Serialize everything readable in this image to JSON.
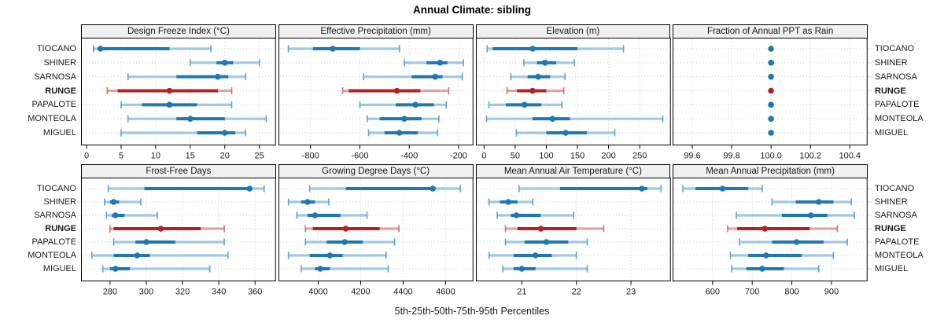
{
  "title": "Annual Climate: sibling",
  "caption": "5th-25th-50th-75th-95th Percentiles",
  "colors": {
    "series_blue": "#1f77b4",
    "series_blue_light": "#9ecae1",
    "series_blue_cap": "#5ba3d0",
    "highlight_red": "#b22222",
    "highlight_red_light": "#e4a3a3",
    "highlight_red_cap": "#cf7171",
    "strip_bg": "#f0f0f0",
    "panel_bg": "#ffffff",
    "panel_border": "#000000",
    "grid_color": "#c9c9c9",
    "edge_tick_color": "#999999",
    "text": "#1a1a1a"
  },
  "chart_data": {
    "type": "dotplot",
    "title": "Annual Climate: sibling",
    "xlabel": "5th-25th-50th-75th-95th Percentiles",
    "layout": "2 rows x 4 cols",
    "grid": "dotted",
    "legend_position": "none",
    "percentiles": [
      5,
      25,
      50,
      75,
      95
    ],
    "categories": [
      "TIOCANO",
      "SHINER",
      "SARNOSA",
      "RUNGE",
      "PAPALOTE",
      "MONTEOLA",
      "MIGUEL"
    ],
    "highlight_category": "RUNGE",
    "panels": [
      {
        "title": "Design Freeze Index (°C)",
        "xlim": [
          -0.8,
          27.4
        ],
        "ticks": [
          0,
          5,
          10,
          15,
          20,
          25
        ],
        "tick_labels": [
          "0",
          "5",
          "10",
          "15",
          "20",
          "25"
        ],
        "values": [
          [
            1,
            1.8,
            2,
            12,
            18
          ],
          [
            15,
            18.8,
            20,
            21.2,
            25
          ],
          [
            6,
            13,
            19,
            20.5,
            23
          ],
          [
            3,
            4.5,
            12,
            19,
            21
          ],
          [
            5,
            8,
            12,
            16,
            21
          ],
          [
            6,
            13,
            15,
            20,
            26
          ],
          [
            5,
            16,
            20,
            21.5,
            23
          ]
        ]
      },
      {
        "title": "Effective Precipitation (mm)",
        "xlim": [
          -930,
          -140
        ],
        "ticks": [
          -800,
          -600,
          -400,
          -200
        ],
        "tick_labels": [
          "-800",
          "-600",
          "-400",
          "-200"
        ],
        "values": [
          [
            -890,
            -790,
            -710,
            -600,
            -440
          ],
          [
            -420,
            -330,
            -275,
            -245,
            -180
          ],
          [
            -585,
            -390,
            -295,
            -265,
            -185
          ],
          [
            -670,
            -645,
            -450,
            -355,
            -240
          ],
          [
            -600,
            -455,
            -375,
            -300,
            -250
          ],
          [
            -570,
            -520,
            -420,
            -350,
            -280
          ],
          [
            -565,
            -500,
            -440,
            -365,
            -285
          ]
        ]
      },
      {
        "title": "Elevation (m)",
        "xlim": [
          -13,
          300
        ],
        "ticks": [
          0,
          50,
          100,
          150,
          200,
          250
        ],
        "tick_labels": [
          "0",
          "50",
          "100",
          "150",
          "200",
          "250"
        ],
        "values": [
          [
            5,
            14,
            78,
            150,
            224
          ],
          [
            64,
            85,
            98,
            116,
            145
          ],
          [
            43,
            70,
            87,
            106,
            130
          ],
          [
            37,
            53,
            78,
            100,
            128
          ],
          [
            8,
            35,
            65,
            92,
            125
          ],
          [
            4,
            78,
            110,
            138,
            287
          ],
          [
            52,
            100,
            131,
            165,
            210
          ]
        ]
      },
      {
        "title": "Fraction of Annual PPT as Rain",
        "xlim": [
          99.5,
          100.49
        ],
        "ticks": [
          99.6,
          99.8,
          100.0,
          100.2,
          100.4
        ],
        "tick_labels": [
          "99.6",
          "99.8",
          "100.0",
          "100.2",
          "100.4"
        ],
        "values": [
          [
            100,
            100,
            100,
            100,
            100
          ],
          [
            100,
            100,
            100,
            100,
            100
          ],
          [
            100,
            100,
            100,
            100,
            100
          ],
          [
            100,
            100,
            100,
            100,
            100
          ],
          [
            100,
            100,
            100,
            100,
            100
          ],
          [
            100,
            100,
            100,
            100,
            100
          ],
          [
            100,
            100,
            100,
            100,
            100
          ]
        ]
      },
      {
        "title": "Frost-Free Days",
        "xlim": [
          264,
          371.5
        ],
        "ticks": [
          280,
          300,
          320,
          340,
          360
        ],
        "tick_labels": [
          "280",
          "300",
          "320",
          "340",
          "360"
        ],
        "values": [
          [
            279,
            299,
            357,
            358,
            365
          ],
          [
            277,
            280,
            282,
            285,
            297
          ],
          [
            278,
            281,
            283,
            288,
            306
          ],
          [
            280,
            282,
            308,
            330,
            343
          ],
          [
            282,
            294,
            300,
            316,
            343
          ],
          [
            270,
            282,
            295,
            302,
            345
          ],
          [
            276,
            280,
            283,
            291,
            335
          ]
        ]
      },
      {
        "title": "Growing Degree Days (°C)",
        "xlim": [
          3813,
          4731
        ],
        "ticks": [
          4000,
          4200,
          4400,
          4600
        ],
        "tick_labels": [
          "4000",
          "4200",
          "4400",
          "4600"
        ],
        "values": [
          [
            3960,
            4130,
            4540,
            4550,
            4670
          ],
          [
            3860,
            3920,
            3950,
            3985,
            4050
          ],
          [
            3900,
            3950,
            3985,
            4105,
            4230
          ],
          [
            3940,
            3975,
            4130,
            4290,
            4380
          ],
          [
            3940,
            4040,
            4125,
            4210,
            4360
          ],
          [
            3860,
            3960,
            4055,
            4115,
            4320
          ],
          [
            3920,
            3985,
            4010,
            4055,
            4330
          ]
        ]
      },
      {
        "title": "Mean Annual Air Temperature (°C)",
        "xlim": [
          20.16,
          23.73
        ],
        "ticks": [
          21,
          22,
          23
        ],
        "tick_labels": [
          "21",
          "22",
          "23"
        ],
        "values": [
          [
            20.95,
            21.7,
            23.2,
            23.3,
            23.55
          ],
          [
            20.4,
            20.6,
            20.75,
            20.92,
            21.2
          ],
          [
            20.55,
            20.8,
            20.9,
            21.35,
            21.95
          ],
          [
            20.7,
            20.92,
            21.35,
            22.0,
            22.5
          ],
          [
            20.7,
            21.05,
            21.45,
            21.85,
            22.2
          ],
          [
            20.4,
            20.85,
            21.25,
            21.55,
            22.0
          ],
          [
            20.65,
            20.85,
            21.0,
            21.25,
            22.2
          ]
        ]
      },
      {
        "title": "Mean Annual Precipitation (mm)",
        "xlim": [
          499,
          991
        ],
        "ticks": [
          600,
          700,
          800,
          900
        ],
        "tick_labels": [
          "600",
          "700",
          "800",
          "900"
        ],
        "values": [
          [
            525,
            557,
            625,
            690,
            725
          ],
          [
            750,
            810,
            868,
            905,
            950
          ],
          [
            660,
            775,
            848,
            890,
            958
          ],
          [
            638,
            662,
            732,
            845,
            915
          ],
          [
            668,
            750,
            812,
            880,
            940
          ],
          [
            645,
            690,
            735,
            825,
            905
          ],
          [
            648,
            685,
            725,
            780,
            868
          ]
        ]
      }
    ]
  }
}
